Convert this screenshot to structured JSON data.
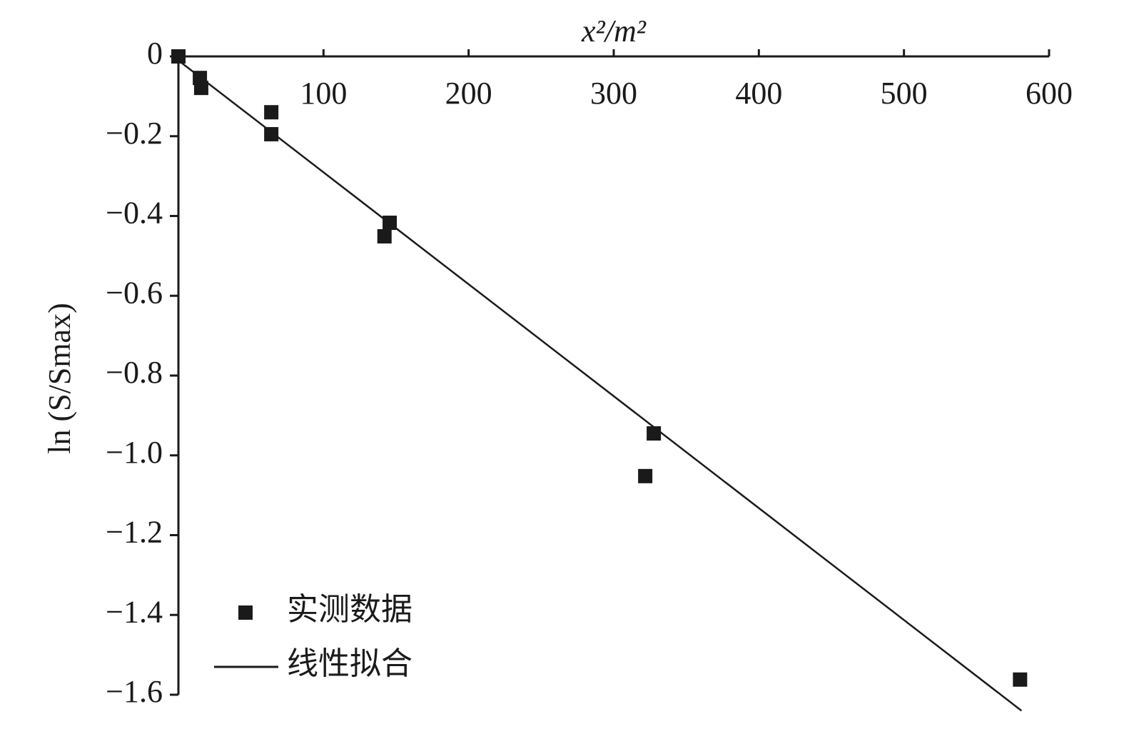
{
  "chart_data": {
    "type": "scatter",
    "x_label": "x²/m²",
    "y_label": "ln (S/Smax)",
    "xlim": [
      0,
      600
    ],
    "ylim": [
      -1.6,
      0
    ],
    "xticks": [
      100,
      200,
      300,
      400,
      500,
      600
    ],
    "yticks": [
      0,
      {
        "value": -0.2,
        "label": "−0.2"
      },
      {
        "value": -0.4,
        "label": "−0.4"
      },
      {
        "value": -0.6,
        "label": "−0.6"
      },
      {
        "value": -0.8,
        "label": "−0.8"
      },
      {
        "value": -1.0,
        "label": "−1.0"
      },
      {
        "value": -1.2,
        "label": "−1.2"
      },
      {
        "value": -1.4,
        "label": "−1.4"
      },
      {
        "value": -1.6,
        "label": "−1.6"
      }
    ],
    "legend": "bottom-left",
    "series": [
      {
        "name": "实测数据",
        "color": "#1a1a1a",
        "mode": "markers",
        "x": [
          0,
          14.8,
          15.7,
          64,
          64,
          145.6,
          142,
          327.6,
          321.7,
          580
        ],
        "values": [
          0,
          -0.054,
          -0.079,
          -0.14,
          -0.195,
          -0.417,
          -0.451,
          -0.945,
          -1.052,
          -1.562
        ]
      },
      {
        "name": "线性拟合",
        "color": "#1a1a1a",
        "mode": "line",
        "x": [
          0,
          581
        ],
        "values": [
          -0.01,
          -1.64
        ]
      }
    ]
  }
}
